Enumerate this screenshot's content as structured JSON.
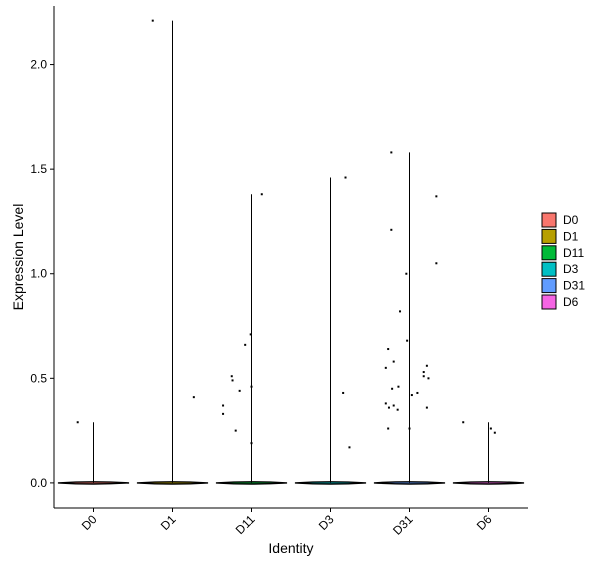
{
  "chart_data": {
    "type": "violin",
    "xlabel": "Identity",
    "ylabel": "Expression Level",
    "ylim": [
      -0.12,
      2.28
    ],
    "yticks": [
      0.0,
      0.5,
      1.0,
      1.5,
      2.0
    ],
    "ytick_labels": [
      "0.0",
      "0.5",
      "1.0",
      "1.5",
      "2.0"
    ],
    "grid": false,
    "legend_position": "right",
    "categories": [
      "D0",
      "D1",
      "D11",
      "D3",
      "D31",
      "D6"
    ],
    "series": [
      {
        "name": "D0",
        "color": "#F8766D",
        "max": 0.29,
        "points": [
          [
            -0.2,
            0.29
          ]
        ]
      },
      {
        "name": "D1",
        "color": "#B79F00",
        "max": 2.21,
        "points": [
          [
            -0.25,
            2.21
          ],
          [
            0.27,
            0.41
          ]
        ]
      },
      {
        "name": "D11",
        "color": "#00BA38",
        "max": 1.38,
        "points": [
          [
            -0.36,
            0.37
          ],
          [
            -0.36,
            0.33
          ],
          [
            -0.25,
            0.51
          ],
          [
            -0.24,
            0.49
          ],
          [
            -0.2,
            0.25
          ],
          [
            -0.15,
            0.44
          ],
          [
            -0.08,
            0.66
          ],
          [
            -0.01,
            0.71
          ],
          [
            0.0,
            0.46
          ],
          [
            0.0,
            0.19
          ],
          [
            0.13,
            1.38
          ]
        ]
      },
      {
        "name": "D3",
        "color": "#00BFC4",
        "max": 1.46,
        "points": [
          [
            0.19,
            1.46
          ],
          [
            0.16,
            0.43
          ],
          [
            0.24,
            0.17
          ]
        ]
      },
      {
        "name": "D31",
        "color": "#619CFF",
        "max": 1.58,
        "points": [
          [
            -0.3,
            0.55
          ],
          [
            -0.3,
            0.38
          ],
          [
            -0.27,
            0.64
          ],
          [
            -0.27,
            0.26
          ],
          [
            -0.26,
            0.36
          ],
          [
            -0.23,
            1.58
          ],
          [
            -0.23,
            1.21
          ],
          [
            -0.22,
            0.45
          ],
          [
            -0.2,
            0.37
          ],
          [
            -0.2,
            0.58
          ],
          [
            -0.15,
            0.35
          ],
          [
            -0.14,
            0.46
          ],
          [
            -0.12,
            0.82
          ],
          [
            -0.04,
            1.0
          ],
          [
            -0.03,
            0.68
          ],
          [
            0.0,
            0.26
          ],
          [
            0.03,
            0.42
          ],
          [
            0.1,
            0.43
          ],
          [
            0.18,
            0.51
          ],
          [
            0.18,
            0.53
          ],
          [
            0.22,
            0.56
          ],
          [
            0.22,
            0.36
          ],
          [
            0.24,
            0.5
          ],
          [
            0.34,
            1.37
          ],
          [
            0.34,
            1.05
          ]
        ]
      },
      {
        "name": "D6",
        "color": "#F564E3",
        "max": 0.29,
        "points": [
          [
            -0.32,
            0.29
          ],
          [
            0.03,
            0.26
          ],
          [
            0.08,
            0.24
          ]
        ]
      }
    ]
  }
}
